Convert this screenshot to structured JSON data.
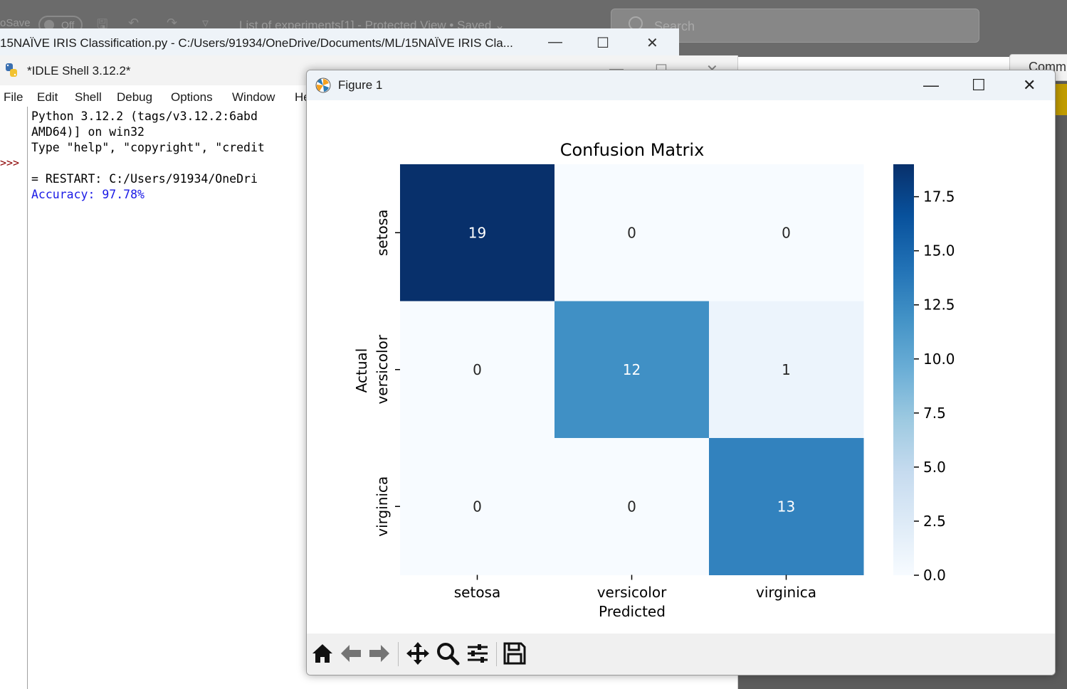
{
  "word": {
    "autosave_label": "oSave",
    "toggle_label": "Off",
    "doc_title": "List of experiments[1] - Protected View • Saved ⌄",
    "search_placeholder": "Search",
    "comments_label": "Comm"
  },
  "editor": {
    "title": "15NAÏVE IRIS Classification.py - C:/Users/91934/OneDrive/Documents/ML/15NAÏVE IRIS Cla..."
  },
  "shell": {
    "title": "*IDLE Shell 3.12.2*",
    "menu": [
      "File",
      "Edit",
      "Shell",
      "Debug",
      "Options",
      "Window",
      "He"
    ],
    "prompt": ">>>",
    "lines": [
      "Python 3.12.2 (tags/v3.12.2:6abd",
      "AMD64)] on win32",
      "Type \"help\", \"copyright\", \"credit",
      "= RESTART: C:/Users/91934/OneDri",
      "Accuracy: 97.78%"
    ]
  },
  "figure": {
    "title": "Figure 1",
    "toolbar": [
      "home-icon",
      "back-icon",
      "forward-icon",
      "pan-icon",
      "zoom-icon",
      "configure-icon",
      "save-icon"
    ]
  },
  "chart_data": {
    "type": "heatmap",
    "title": "Confusion Matrix",
    "xlabel": "Predicted",
    "ylabel": "Actual",
    "x_categories": [
      "setosa",
      "versicolor",
      "virginica"
    ],
    "y_categories": [
      "setosa",
      "versicolor",
      "virginica"
    ],
    "values": [
      [
        19,
        0,
        0
      ],
      [
        0,
        12,
        1
      ],
      [
        0,
        0,
        13
      ]
    ],
    "colormap": "Blues",
    "color_min": 0,
    "color_max": 19,
    "colorbar_ticks": [
      "0.0",
      "2.5",
      "5.0",
      "7.5",
      "10.0",
      "12.5",
      "15.0",
      "17.5"
    ],
    "colorbar_tick_values": [
      0,
      2.5,
      5,
      7.5,
      10,
      12.5,
      15,
      17.5
    ]
  }
}
